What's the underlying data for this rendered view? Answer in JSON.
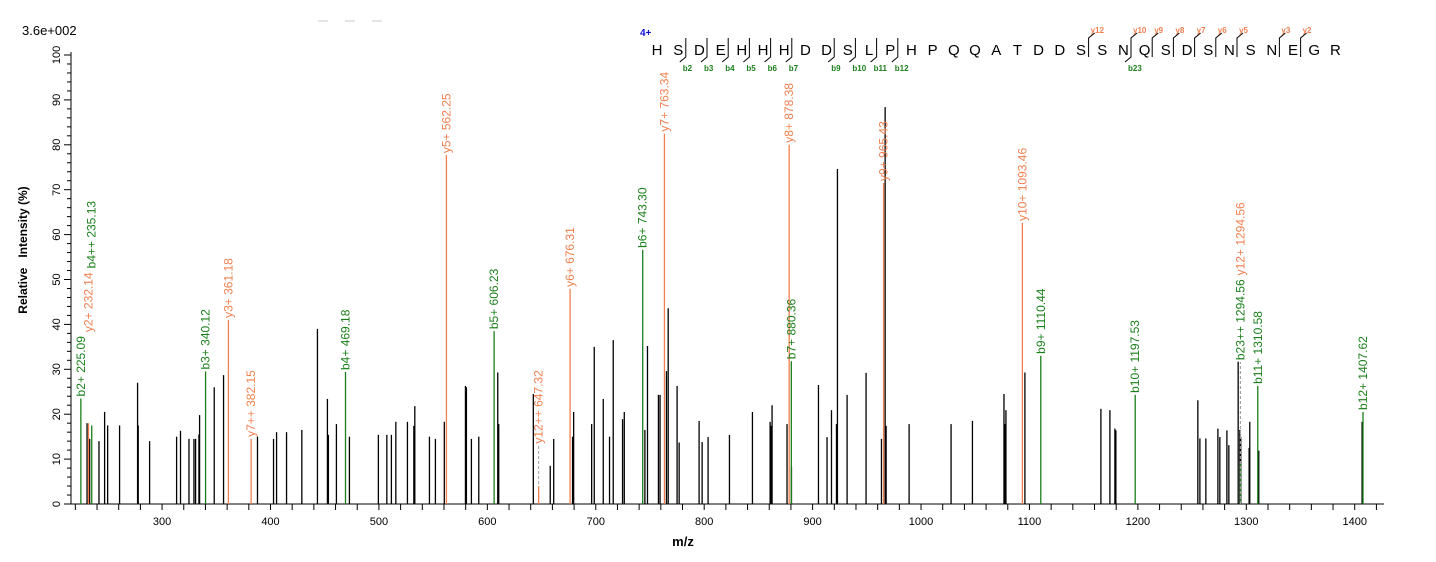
{
  "chart_data": {
    "type": "bar",
    "max_intensity_label": "3.6e+002",
    "xlabel": "m/z",
    "ylabel": "Relative   Intensity (%)",
    "xlim": [
      216,
      1427
    ],
    "ylim": [
      0,
      100
    ],
    "x_ticks": [
      300,
      400,
      500,
      600,
      700,
      800,
      900,
      1000,
      1100,
      1200,
      1300,
      1400
    ],
    "y_ticks": [
      0,
      10,
      20,
      30,
      40,
      50,
      60,
      70,
      80,
      90,
      100
    ],
    "colors": {
      "unassigned": "#000000",
      "b_ion": "#1a7f1a",
      "y_ion": "#f07f4f",
      "charge": "#1010d0",
      "dashed": "#a0a0a0"
    },
    "precursor_charge": "4+",
    "sequence": "HSDEHHHDDSLPHPQQATDDSSNQSDSNSNEGR",
    "b_markers": [
      {
        "after": 2,
        "label": "b2"
      },
      {
        "after": 3,
        "label": "b3"
      },
      {
        "after": 4,
        "label": "b4"
      },
      {
        "after": 5,
        "label": "b5"
      },
      {
        "after": 6,
        "label": "b6"
      },
      {
        "after": 7,
        "label": "b7"
      },
      {
        "after": 9,
        "label": "b9"
      },
      {
        "after": 10,
        "label": "b10"
      },
      {
        "after": 11,
        "label": "b11"
      },
      {
        "after": 12,
        "label": "b12"
      },
      {
        "after": 23,
        "label": "b23"
      }
    ],
    "y_markers": [
      {
        "after": 21,
        "label": "y12"
      },
      {
        "after": 23,
        "label": "y10"
      },
      {
        "after": 24,
        "label": "y9"
      },
      {
        "after": 25,
        "label": "y8"
      },
      {
        "after": 26,
        "label": "y7"
      },
      {
        "after": 27,
        "label": "y6"
      },
      {
        "after": 28,
        "label": "y5"
      },
      {
        "after": 30,
        "label": "y3"
      },
      {
        "after": 31,
        "label": "y2"
      }
    ],
    "annotated_peaks": [
      {
        "mz": 225.09,
        "intensity": 23.5,
        "ion": "b",
        "label": "b2+  225.09"
      },
      {
        "mz": 232.14,
        "intensity": 18,
        "ion": "y",
        "label": "y2+  232.14"
      },
      {
        "mz": 235.13,
        "intensity": 17.5,
        "ion": "b",
        "label": "b4++  235.13"
      },
      {
        "mz": 340.12,
        "intensity": 29.5,
        "ion": "b",
        "label": "b3+  340.12"
      },
      {
        "mz": 361.18,
        "intensity": 41,
        "ion": "y",
        "label": "y3+  361.18"
      },
      {
        "mz": 382.15,
        "intensity": 14.5,
        "ion": "y",
        "label": "y7++  382.15"
      },
      {
        "mz": 469.18,
        "intensity": 29.4,
        "ion": "b",
        "label": "b4+  469.18"
      },
      {
        "mz": 562.25,
        "intensity": 77.7,
        "ion": "y",
        "label": "y5+  562.25"
      },
      {
        "mz": 606.23,
        "intensity": 38.5,
        "ion": "b",
        "label": "b5+  606.23"
      },
      {
        "mz": 647.32,
        "intensity": 13,
        "ion": "y",
        "label": "y12++  647.32",
        "dashed": true
      },
      {
        "mz": 676.31,
        "intensity": 47.9,
        "ion": "y",
        "label": "y6+  676.31"
      },
      {
        "mz": 743.3,
        "intensity": 56.6,
        "ion": "b",
        "label": "b6+  743.30"
      },
      {
        "mz": 763.34,
        "intensity": 82.5,
        "ion": "y",
        "label": "y7+  763.34"
      },
      {
        "mz": 878.38,
        "intensity": 80,
        "ion": "y",
        "label": "y8+  878.38"
      },
      {
        "mz": 880.36,
        "intensity": 31.8,
        "ion": "b",
        "label": "b7+  880.36"
      },
      {
        "mz": 965.43,
        "intensity": 71.5,
        "ion": "y",
        "label": "y9+  965.43"
      },
      {
        "mz": 1093.46,
        "intensity": 62.6,
        "ion": "y",
        "label": "y10+  1093.46"
      },
      {
        "mz": 1110.44,
        "intensity": 33,
        "ion": "b",
        "label": "b9+  1110.44"
      },
      {
        "mz": 1197.53,
        "intensity": 24.3,
        "ion": "b",
        "label": "b10+  1197.53"
      },
      {
        "mz": 1294.56,
        "intensity": 31.6,
        "ion": "b",
        "label": "b23++  1294.56",
        "dashed": true
      },
      {
        "mz": 1294.56,
        "intensity": 31.6,
        "ion": "y",
        "label": "y12+  1294.56",
        "dashed": true
      },
      {
        "mz": 1310.58,
        "intensity": 26.3,
        "ion": "b",
        "label": "b11+  1310.58"
      },
      {
        "mz": 1407.62,
        "intensity": 20.5,
        "ion": "b",
        "label": "b12+  1407.62"
      }
    ],
    "peaks": [
      [
        230.8,
        18
      ],
      [
        233.2,
        14.5
      ],
      [
        241.8,
        14
      ],
      [
        247,
        20.5
      ],
      [
        249.8,
        17.5
      ],
      [
        260.8,
        17.5
      ],
      [
        277.4,
        27
      ],
      [
        278,
        17.5
      ],
      [
        288.5,
        14
      ],
      [
        313.4,
        15
      ],
      [
        317,
        16.3
      ],
      [
        324.8,
        14.5
      ],
      [
        329.4,
        14.5
      ],
      [
        330.9,
        14.5
      ],
      [
        334,
        15.5
      ],
      [
        334.6,
        19.8
      ],
      [
        348.1,
        26
      ],
      [
        356.7,
        28.7
      ],
      [
        388,
        15
      ],
      [
        402.8,
        14.5
      ],
      [
        405.6,
        16
      ],
      [
        414.8,
        16
      ],
      [
        428.9,
        16.5
      ],
      [
        443.3,
        39
      ],
      [
        452.5,
        23.4
      ],
      [
        453.4,
        15.4
      ],
      [
        460.8,
        17.8
      ],
      [
        472.8,
        15
      ],
      [
        499.5,
        15.4
      ],
      [
        507.3,
        15.4
      ],
      [
        511.5,
        15.4
      ],
      [
        515.6,
        18.3
      ],
      [
        526.3,
        18.3
      ],
      [
        532.2,
        17.4
      ],
      [
        533.1,
        21.8
      ],
      [
        546.6,
        15
      ],
      [
        552.1,
        14.5
      ],
      [
        560.3,
        18.3
      ],
      [
        579.8,
        26.3
      ],
      [
        580.7,
        26
      ],
      [
        585.3,
        14.5
      ],
      [
        592.1,
        15
      ],
      [
        609.6,
        29.3
      ],
      [
        610.5,
        17.8
      ],
      [
        642.4,
        24.5
      ],
      [
        658,
        8.5
      ],
      [
        661.2,
        14.5
      ],
      [
        678.6,
        15
      ],
      [
        679.6,
        20.5
      ],
      [
        696.2,
        17.8
      ],
      [
        698.6,
        35
      ],
      [
        706.9,
        23.4
      ],
      [
        712.7,
        15
      ],
      [
        716.1,
        36.5
      ],
      [
        724.7,
        18.9
      ],
      [
        726.3,
        20.5
      ],
      [
        745.3,
        16.5
      ],
      [
        747.7,
        35.2
      ],
      [
        757.8,
        24.3
      ],
      [
        759.3,
        24.3
      ],
      [
        765.2,
        29.6
      ],
      [
        766.8,
        43.6
      ],
      [
        775,
        26.3
      ],
      [
        776.9,
        13.7
      ],
      [
        795.3,
        18.5
      ],
      [
        798.1,
        13.8
      ],
      [
        803.6,
        14.9
      ],
      [
        823.3,
        15.4
      ],
      [
        844.5,
        20.5
      ],
      [
        860.8,
        18.3
      ],
      [
        861.7,
        17.4
      ],
      [
        862.6,
        22
      ],
      [
        876.4,
        17.8
      ],
      [
        880.5,
        8.2
      ],
      [
        905.4,
        26.5
      ],
      [
        913.3,
        14.9
      ],
      [
        917.4,
        20.9
      ],
      [
        922,
        17.8
      ],
      [
        922.9,
        74.6
      ],
      [
        931.8,
        24.3
      ],
      [
        949.3,
        29.2
      ],
      [
        963.5,
        14.5
      ],
      [
        966.9,
        88.4
      ],
      [
        967.8,
        17.4
      ],
      [
        989,
        17.8
      ],
      [
        1027.7,
        17.8
      ],
      [
        1047.4,
        18.5
      ],
      [
        1076.5,
        24.5
      ],
      [
        1077.4,
        17.8
      ],
      [
        1078.3,
        20.9
      ],
      [
        1095.8,
        29.3
      ],
      [
        1165.9,
        21.2
      ],
      [
        1174.2,
        20.9
      ],
      [
        1178.8,
        16.8
      ],
      [
        1179.7,
        16.4
      ],
      [
        1255.3,
        23.1
      ],
      [
        1257.2,
        14.6
      ],
      [
        1262.7,
        14.6
      ],
      [
        1273.8,
        16.8
      ],
      [
        1275.6,
        14.9
      ],
      [
        1282.1,
        16.4
      ],
      [
        1283.9,
        13.1
      ],
      [
        1292.5,
        31.7
      ],
      [
        1294,
        16.5
      ],
      [
        1294.9,
        14.9
      ],
      [
        1302.6,
        12.5
      ],
      [
        1303.2,
        18.3
      ],
      [
        1311.5,
        11.9
      ],
      [
        1406.8,
        18.3
      ]
    ]
  }
}
